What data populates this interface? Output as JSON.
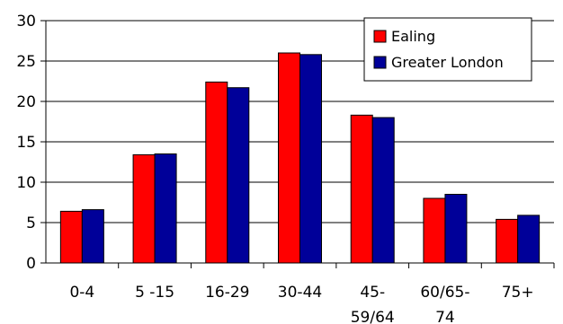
{
  "chart_data": {
    "type": "bar",
    "categories": [
      [
        "0-4"
      ],
      [
        "5 -15"
      ],
      [
        "16-29"
      ],
      [
        "30-44"
      ],
      [
        "45-",
        "59/64"
      ],
      [
        "60/65-",
        "74"
      ],
      [
        "75+"
      ]
    ],
    "series": [
      {
        "name": "Ealing",
        "color": "#ff0000",
        "values": [
          6.4,
          13.4,
          22.4,
          26.0,
          18.3,
          8.0,
          5.4
        ]
      },
      {
        "name": "Greater London",
        "color": "#000099",
        "values": [
          6.6,
          13.5,
          21.7,
          25.8,
          18.0,
          8.5,
          5.9
        ]
      }
    ],
    "ylim": [
      0,
      30
    ],
    "yticks": [
      0,
      5,
      10,
      15,
      20,
      25,
      30
    ],
    "grid": true,
    "legend_position": "top-right"
  }
}
